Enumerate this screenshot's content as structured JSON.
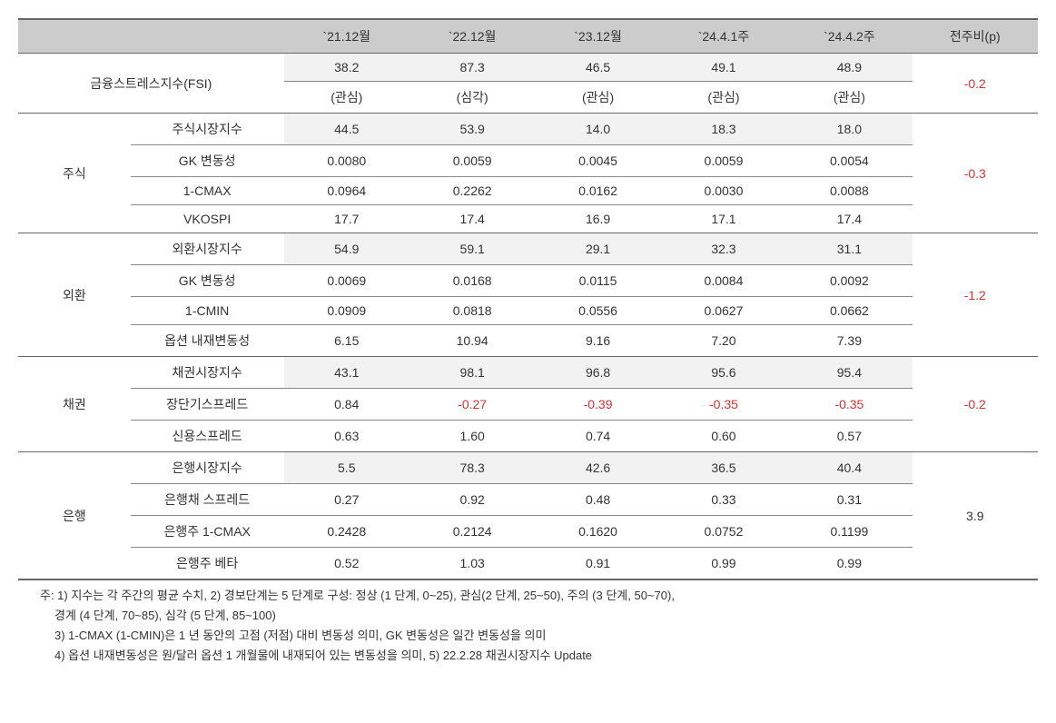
{
  "headers": {
    "blank1": "",
    "blank2": "",
    "c1": "`21.12월",
    "c2": "`22.12월",
    "c3": "`23.12월",
    "c4": "`24.4.1주",
    "c5": "`24.4.2주",
    "diff": "전주비(p)"
  },
  "fsi": {
    "label": "금융스트레스지수(FSI)",
    "v1": "38.2",
    "v2": "87.3",
    "v3": "46.5",
    "v4": "49.1",
    "v5": "48.9",
    "s1": "(관심)",
    "s2": "(심각)",
    "s3": "(관심)",
    "s4": "(관심)",
    "s5": "(관심)",
    "diff": "-0.2"
  },
  "stock": {
    "label": "주식",
    "diff": "-0.3",
    "rows": [
      {
        "label": "주식시장지수",
        "v1": "44.5",
        "v2": "53.9",
        "v3": "14.0",
        "v4": "18.3",
        "v5": "18.0",
        "shaded": true
      },
      {
        "label": "GK 변동성",
        "v1": "0.0080",
        "v2": "0.0059",
        "v3": "0.0045",
        "v4": "0.0059",
        "v5": "0.0054"
      },
      {
        "label": "1-CMAX",
        "v1": "0.0964",
        "v2": "0.2262",
        "v3": "0.0162",
        "v4": "0.0030",
        "v5": "0.0088"
      },
      {
        "label": "VKOSPI",
        "v1": "17.7",
        "v2": "17.4",
        "v3": "16.9",
        "v4": "17.1",
        "v5": "17.4"
      }
    ]
  },
  "fx": {
    "label": "외환",
    "diff": "-1.2",
    "rows": [
      {
        "label": "외환시장지수",
        "v1": "54.9",
        "v2": "59.1",
        "v3": "29.1",
        "v4": "32.3",
        "v5": "31.1",
        "shaded": true
      },
      {
        "label": "GK 변동성",
        "v1": "0.0069",
        "v2": "0.0168",
        "v3": "0.0115",
        "v4": "0.0084",
        "v5": "0.0092"
      },
      {
        "label": "1-CMIN",
        "v1": "0.0909",
        "v2": "0.0818",
        "v3": "0.0556",
        "v4": "0.0627",
        "v5": "0.0662"
      },
      {
        "label": "옵션 내재변동성",
        "v1": "6.15",
        "v2": "10.94",
        "v3": "9.16",
        "v4": "7.20",
        "v5": "7.39"
      }
    ]
  },
  "bond": {
    "label": "채권",
    "diff": "-0.2",
    "rows": [
      {
        "label": "채권시장지수",
        "v1": "43.1",
        "v2": "98.1",
        "v3": "96.8",
        "v4": "95.6",
        "v5": "95.4",
        "shaded": true
      },
      {
        "label": "장단기스프레드",
        "v1": "0.84",
        "v2": "-0.27",
        "v3": "-0.39",
        "v4": "-0.35",
        "v5": "-0.35",
        "neg_from": 2
      },
      {
        "label": "신용스프레드",
        "v1": "0.63",
        "v2": "1.60",
        "v3": "0.74",
        "v4": "0.60",
        "v5": "0.57"
      }
    ]
  },
  "bank": {
    "label": "은행",
    "diff": "3.9",
    "rows": [
      {
        "label": "은행시장지수",
        "v1": "5.5",
        "v2": "78.3",
        "v3": "42.6",
        "v4": "36.5",
        "v5": "40.4",
        "shaded": true
      },
      {
        "label": "은행채 스프레드",
        "v1": "0.27",
        "v2": "0.92",
        "v3": "0.48",
        "v4": "0.33",
        "v5": "0.31"
      },
      {
        "label": "은행주 1-CMAX",
        "v1": "0.2428",
        "v2": "0.2124",
        "v3": "0.1620",
        "v4": "0.0752",
        "v5": "0.1199"
      },
      {
        "label": "은행주 베타",
        "v1": "0.52",
        "v2": "1.03",
        "v3": "0.91",
        "v4": "0.99",
        "v5": "0.99"
      }
    ]
  },
  "footnotes": {
    "l1": "주: 1) 지수는 각 주간의 평균 수치, 2) 경보단계는 5 단계로 구성: 정상 (1 단계, 0~25), 관심(2 단계, 25~50), 주의 (3 단계, 50~70),",
    "l2": "경계 (4 단계, 70~85), 심각 (5 단계, 85~100)",
    "l3": "3) 1-CMAX (1-CMIN)은 1 년 동안의 고점 (저점) 대비 변동성 의미, GK 변동성은 일간 변동성을 의미",
    "l4": "4) 옵션 내재변동성은 원/달러 옵션 1 개월물에 내재되어 있는 변동성을 의미, 5) 22.2.28 채권시장지수 Update"
  },
  "colors": {
    "header_bg": "#cccccc",
    "shaded_bg": "#f2f2f2",
    "negative": "#d93030",
    "border": "#666666",
    "text": "#333333"
  }
}
